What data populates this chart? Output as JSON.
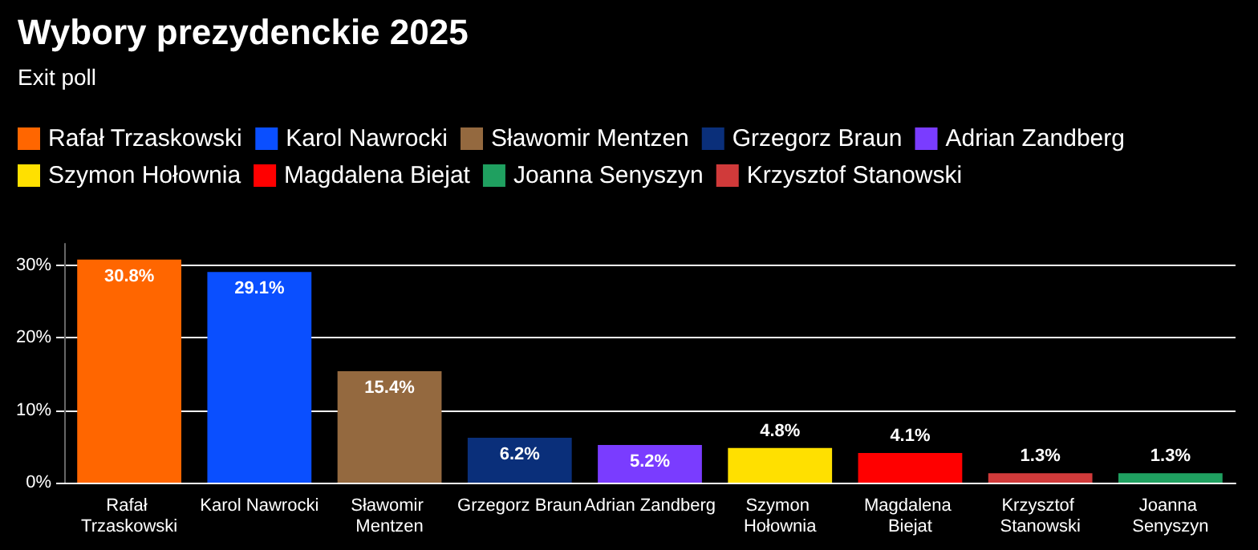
{
  "chart_data": {
    "type": "bar",
    "title": "Wybory prezydenckie 2025",
    "subtitle": "Exit poll",
    "categories": [
      "Rafał Trzaskowski",
      "Karol Nawrocki",
      "Sławomir Mentzen",
      "Grzegorz Braun",
      "Adrian Zandberg",
      "Szymon Hołownia",
      "Magdalena Biejat",
      "Krzysztof Stanowski",
      "Joanna Senyszyn"
    ],
    "stacked": true,
    "series": [
      {
        "name": "Rafał Trzaskowski",
        "color": "#ff6600",
        "values": [
          30.8,
          null,
          null,
          null,
          null,
          null,
          null,
          null,
          null
        ],
        "value_labels": [
          "30.8%",
          null,
          null,
          null,
          null,
          null,
          null,
          null,
          null
        ]
      },
      {
        "name": "Karol Nawrocki",
        "color": "#0a4fff",
        "values": [
          null,
          29.1,
          null,
          null,
          null,
          null,
          null,
          null,
          null
        ],
        "value_labels": [
          null,
          "29.1%",
          null,
          null,
          null,
          null,
          null,
          null,
          null
        ]
      },
      {
        "name": "Sławomir Mentzen",
        "color": "#94693f",
        "values": [
          null,
          null,
          15.4,
          null,
          null,
          null,
          null,
          null,
          null
        ],
        "value_labels": [
          null,
          null,
          "15.4%",
          null,
          null,
          null,
          null,
          null,
          null
        ]
      },
      {
        "name": "Grzegorz Braun",
        "color": "#0a2f7a",
        "values": [
          null,
          null,
          null,
          6.2,
          null,
          null,
          null,
          null,
          null
        ],
        "value_labels": [
          null,
          null,
          null,
          "6.2%",
          null,
          null,
          null,
          null,
          null
        ]
      },
      {
        "name": "Adrian Zandberg",
        "color": "#7a3cff",
        "values": [
          null,
          null,
          null,
          null,
          5.2,
          null,
          null,
          null,
          null
        ],
        "value_labels": [
          null,
          null,
          null,
          null,
          "5.2%",
          null,
          null,
          null,
          null
        ]
      },
      {
        "name": "Szymon Hołownia",
        "color": "#ffe000",
        "values": [
          null,
          null,
          null,
          null,
          null,
          4.8,
          null,
          null,
          null
        ],
        "value_labels": [
          null,
          null,
          null,
          null,
          null,
          "4.8%",
          null,
          null,
          null
        ]
      },
      {
        "name": "Magdalena Biejat",
        "color": "#ff0000",
        "values": [
          null,
          null,
          null,
          null,
          null,
          null,
          4.1,
          null,
          null
        ],
        "value_labels": [
          null,
          null,
          null,
          null,
          null,
          null,
          "4.1%",
          null,
          null
        ]
      },
      {
        "name": "Joanna Senyszyn",
        "color": "#1fa060",
        "values": [
          null,
          null,
          null,
          null,
          null,
          null,
          null,
          null,
          1.3
        ],
        "value_labels": [
          null,
          null,
          null,
          null,
          null,
          null,
          null,
          null,
          "1.3%"
        ]
      },
      {
        "name": "Krzysztof Stanowski",
        "color": "#d03a3a",
        "values": [
          null,
          null,
          null,
          null,
          null,
          null,
          null,
          1.3,
          null
        ],
        "value_labels": [
          null,
          null,
          null,
          null,
          null,
          null,
          null,
          "1.3%",
          null
        ]
      }
    ],
    "ylim": [
      0,
      33
    ],
    "yticks": [
      {
        "value": 0,
        "label": "0%"
      },
      {
        "value": 10,
        "label": "10%"
      },
      {
        "value": 20,
        "label": "20%"
      },
      {
        "value": 30,
        "label": "30%"
      }
    ],
    "grid": "y",
    "legend": "top left"
  }
}
